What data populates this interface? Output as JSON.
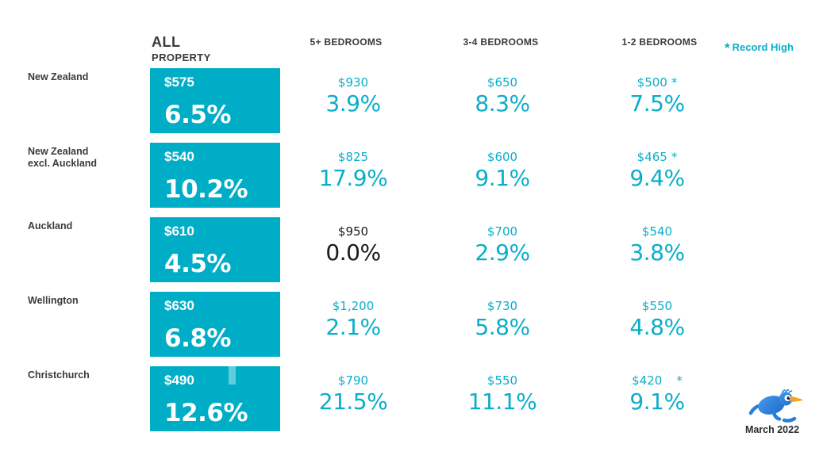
{
  "header": {
    "all_line1": "ALL",
    "all_line2": "PROPERTY",
    "bedrooms": [
      "5+ BEDROOMS",
      "3-4 BEDROOMS",
      "1-2 BEDROOMS"
    ]
  },
  "legend": {
    "symbol": "*",
    "label": "Record High"
  },
  "meta": {
    "date_label": "March 2022",
    "logo": "kiwi-bird-logo"
  },
  "colors": {
    "box_teal": "#00adc6",
    "text_teal": "#0aaeca",
    "dark_text": "#3a3a3a",
    "black_text": "#1a1a1a",
    "kiwi_blue": "#2a7fd9",
    "beak_orange": "#f9a11b"
  },
  "rows": [
    {
      "label_line1": "New Zealand",
      "label_line2": "",
      "all": {
        "price": "$575",
        "change": "6.5%"
      },
      "cells": [
        {
          "price": "$930",
          "change": "3.9%",
          "record": false,
          "black": false,
          "wide_star": false
        },
        {
          "price": "$650",
          "change": "8.3%",
          "record": false,
          "black": false,
          "wide_star": false
        },
        {
          "price": "$500",
          "change": "7.5%",
          "record": true,
          "black": false,
          "wide_star": false
        }
      ]
    },
    {
      "label_line1": "New Zealand",
      "label_line2": "excl. Auckland",
      "all": {
        "price": "$540",
        "change": "10.2%"
      },
      "cells": [
        {
          "price": "$825",
          "change": "17.9%",
          "record": false,
          "black": false,
          "wide_star": false
        },
        {
          "price": "$600",
          "change": "9.1%",
          "record": false,
          "black": false,
          "wide_star": false
        },
        {
          "price": "$465",
          "change": "9.4%",
          "record": true,
          "black": false,
          "wide_star": false
        }
      ]
    },
    {
      "label_line1": "Auckland",
      "label_line2": "",
      "all": {
        "price": "$610",
        "change": "4.5%"
      },
      "cells": [
        {
          "price": "$950",
          "change": "0.0%",
          "record": false,
          "black": true,
          "wide_star": false
        },
        {
          "price": "$700",
          "change": "2.9%",
          "record": false,
          "black": false,
          "wide_star": false
        },
        {
          "price": "$540",
          "change": "3.8%",
          "record": false,
          "black": false,
          "wide_star": false
        }
      ]
    },
    {
      "label_line1": "Wellington",
      "label_line2": "",
      "all": {
        "price": "$630",
        "change": "6.8%"
      },
      "cells": [
        {
          "price": "$1,200",
          "change": "2.1%",
          "record": false,
          "black": false,
          "wide_star": false
        },
        {
          "price": "$730",
          "change": "5.8%",
          "record": false,
          "black": false,
          "wide_star": false
        },
        {
          "price": "$550",
          "change": "4.8%",
          "record": false,
          "black": false,
          "wide_star": false
        }
      ]
    },
    {
      "label_line1": "Christchurch",
      "label_line2": "",
      "all": {
        "price": "$490",
        "change": "12.6%"
      },
      "cells": [
        {
          "price": "$790",
          "change": "21.5%",
          "record": false,
          "black": false,
          "wide_star": false
        },
        {
          "price": "$550",
          "change": "11.1%",
          "record": false,
          "black": false,
          "wide_star": false
        },
        {
          "price": "$420",
          "change": "9.1%",
          "record": true,
          "black": false,
          "wide_star": true
        }
      ]
    }
  ],
  "chart_data": {
    "type": "table",
    "title": "Weekly rent ($) and annual change (%) by region and bedroom count",
    "columns": [
      "All Property",
      "5+ Bedrooms",
      "3-4 Bedrooms",
      "1-2 Bedrooms"
    ],
    "legend": "* Record High",
    "period": "March 2022",
    "rows": [
      {
        "region": "New Zealand",
        "all_property": {
          "rent": 575,
          "yoy_pct": 6.5
        },
        "bed_5plus": {
          "rent": 930,
          "yoy_pct": 3.9
        },
        "bed_3_4": {
          "rent": 650,
          "yoy_pct": 8.3
        },
        "bed_1_2": {
          "rent": 500,
          "yoy_pct": 7.5,
          "record_high": true
        }
      },
      {
        "region": "New Zealand excl. Auckland",
        "all_property": {
          "rent": 540,
          "yoy_pct": 10.2
        },
        "bed_5plus": {
          "rent": 825,
          "yoy_pct": 17.9
        },
        "bed_3_4": {
          "rent": 600,
          "yoy_pct": 9.1
        },
        "bed_1_2": {
          "rent": 465,
          "yoy_pct": 9.4,
          "record_high": true
        }
      },
      {
        "region": "Auckland",
        "all_property": {
          "rent": 610,
          "yoy_pct": 4.5
        },
        "bed_5plus": {
          "rent": 950,
          "yoy_pct": 0.0
        },
        "bed_3_4": {
          "rent": 700,
          "yoy_pct": 2.9
        },
        "bed_1_2": {
          "rent": 540,
          "yoy_pct": 3.8
        }
      },
      {
        "region": "Wellington",
        "all_property": {
          "rent": 630,
          "yoy_pct": 6.8
        },
        "bed_5plus": {
          "rent": 1200,
          "yoy_pct": 2.1
        },
        "bed_3_4": {
          "rent": 730,
          "yoy_pct": 5.8
        },
        "bed_1_2": {
          "rent": 550,
          "yoy_pct": 4.8
        }
      },
      {
        "region": "Christchurch",
        "all_property": {
          "rent": 490,
          "yoy_pct": 12.6
        },
        "bed_5plus": {
          "rent": 790,
          "yoy_pct": 21.5
        },
        "bed_3_4": {
          "rent": 550,
          "yoy_pct": 11.1
        },
        "bed_1_2": {
          "rent": 420,
          "yoy_pct": 9.1,
          "record_high": true
        }
      }
    ]
  }
}
